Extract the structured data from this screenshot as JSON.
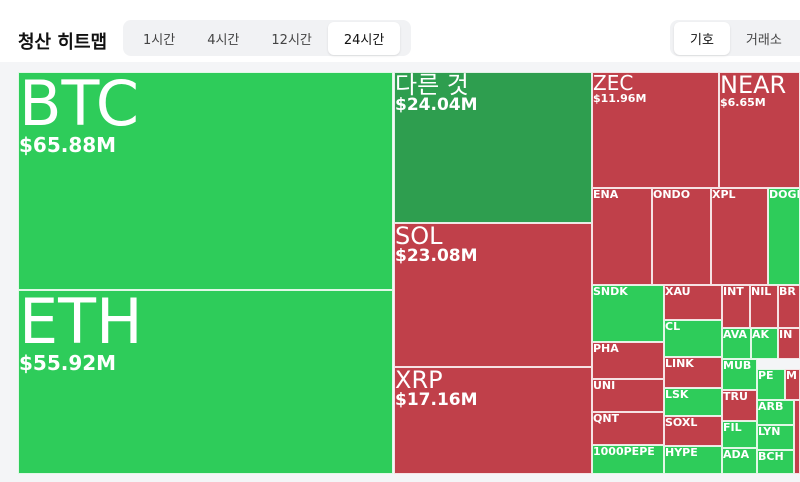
{
  "header": {
    "title": "청산 히트맵",
    "time_tabs": [
      "1시간",
      "4시간",
      "12시간",
      "24시간"
    ],
    "view_tabs": [
      "기호",
      "거래소"
    ]
  },
  "tiles": [
    {
      "name": "BTC",
      "value": "$65.88M"
    },
    {
      "name": "ETH",
      "value": "$55.92M"
    },
    {
      "name": "다른 것",
      "value": "$24.04M"
    },
    {
      "name": "SOL",
      "value": "$23.08M"
    },
    {
      "name": "XRP",
      "value": "$17.16M"
    },
    {
      "name": "ZEC",
      "value": "$11.96M"
    },
    {
      "name": "NEAR",
      "value": "$6.65M"
    },
    {
      "name": "ENA"
    },
    {
      "name": "ONDO"
    },
    {
      "name": "XPL"
    },
    {
      "name": "DOGE"
    },
    {
      "name": "SNDK"
    },
    {
      "name": "PHA"
    },
    {
      "name": "UNI"
    },
    {
      "name": "QNT"
    },
    {
      "name": "1000PEPE"
    },
    {
      "name": "XAU"
    },
    {
      "name": "CL"
    },
    {
      "name": "LINK"
    },
    {
      "name": "LSK"
    },
    {
      "name": "SOXL"
    },
    {
      "name": "HYPE"
    },
    {
      "name": "INT"
    },
    {
      "name": "NIL"
    },
    {
      "name": "BR"
    },
    {
      "name": "AVA"
    },
    {
      "name": "AK"
    },
    {
      "name": "IN"
    },
    {
      "name": "MUB"
    },
    {
      "name": "TRU"
    },
    {
      "name": "FIL"
    },
    {
      "name": "ADA"
    },
    {
      "name": "PE"
    },
    {
      "name": "M"
    },
    {
      "name": "ARB"
    },
    {
      "name": "LYN"
    },
    {
      "name": "BCH"
    }
  ]
}
